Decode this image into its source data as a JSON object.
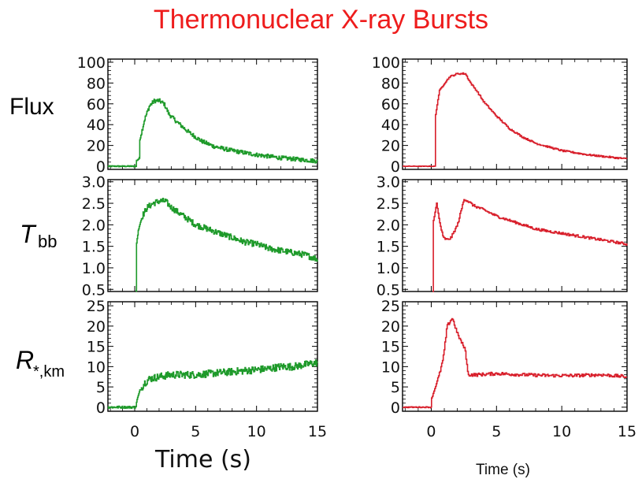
{
  "title": "Thermonuclear X-ray Bursts",
  "row_labels": {
    "flux": "Flux",
    "tbb_main": "T",
    "tbb_sub": "bb",
    "r_main": "R",
    "r_sub": "*,km"
  },
  "xlabel_left": "Time (s)",
  "xlabel_right": "Time (s)",
  "colors": {
    "title": "#ee1c1c",
    "left": "#1e9a2a",
    "right": "#d81e2a"
  },
  "chart_data": [
    {
      "type": "line",
      "name": "left-flux",
      "column": "left",
      "row": "flux",
      "xlim": [
        -2.2,
        15
      ],
      "ylim": [
        -3,
        103
      ],
      "yticks": [
        0,
        20,
        40,
        60,
        80,
        100
      ],
      "xticks": [
        0,
        5,
        10,
        15
      ],
      "x": [
        -2.2,
        0.1,
        0.1,
        0.4,
        0.4,
        0.8,
        1.2,
        1.6,
        2.0,
        2.4,
        2.8,
        3.5,
        4.5,
        5.5,
        6.5,
        8,
        10,
        12,
        14,
        15
      ],
      "y": [
        0,
        0,
        5,
        8,
        25,
        45,
        58,
        63,
        63,
        60,
        50,
        42,
        32,
        24,
        19,
        15,
        11,
        8,
        6,
        5
      ],
      "noise": 2
    },
    {
      "type": "line",
      "name": "left-tbb",
      "column": "left",
      "row": "tbb",
      "xlim": [
        -2.2,
        15
      ],
      "ylim": [
        0.45,
        3.05
      ],
      "yticks": [
        0.5,
        1.0,
        1.5,
        2.0,
        2.5,
        3.0
      ],
      "xticks": [
        0,
        5,
        10,
        15
      ],
      "x": [
        0.1,
        0.1,
        0.3,
        0.6,
        1.0,
        1.5,
        2.0,
        2.5,
        3.0,
        4.0,
        5.0,
        6.0,
        7.0,
        8.0,
        9.0,
        10.0,
        11.0,
        12.0,
        13.0,
        14.0,
        15.0
      ],
      "y": [
        0.45,
        1.5,
        1.9,
        2.2,
        2.4,
        2.5,
        2.55,
        2.55,
        2.4,
        2.2,
        2.0,
        1.9,
        1.8,
        1.7,
        1.6,
        1.55,
        1.45,
        1.4,
        1.35,
        1.3,
        1.2
      ],
      "noise": 0.07
    },
    {
      "type": "line",
      "name": "left-radius",
      "column": "left",
      "row": "radius",
      "xlim": [
        -2.2,
        15
      ],
      "ylim": [
        -1,
        26
      ],
      "yticks": [
        0,
        5,
        10,
        15,
        20,
        25
      ],
      "xticks": [
        0,
        5,
        10,
        15
      ],
      "x": [
        -2.2,
        0.1,
        0.1,
        0.4,
        0.8,
        1.2,
        2,
        3,
        5,
        7,
        9,
        11,
        12,
        13,
        14,
        15
      ],
      "y": [
        0,
        0,
        1,
        4,
        6,
        7,
        7.5,
        8,
        8,
        8.5,
        9,
        9.5,
        10,
        10,
        10.5,
        11
      ],
      "noise": 0.9
    },
    {
      "type": "line",
      "name": "right-flux",
      "column": "right",
      "row": "flux",
      "xlim": [
        -2.2,
        15
      ],
      "ylim": [
        -3,
        103
      ],
      "yticks": [
        0,
        20,
        40,
        60,
        80,
        100
      ],
      "xticks": [
        0,
        5,
        10,
        15
      ],
      "x": [
        -2.2,
        0.3,
        0.3,
        0.6,
        1.0,
        1.4,
        2.0,
        2.6,
        3.0,
        3.5,
        4.0,
        5.0,
        6.0,
        7.0,
        8.0,
        10.0,
        12.0,
        15.0
      ],
      "y": [
        0,
        0,
        48,
        72,
        80,
        86,
        89,
        89,
        80,
        72,
        62,
        48,
        36,
        28,
        22,
        15,
        11,
        7
      ],
      "noise": 0.8
    },
    {
      "type": "line",
      "name": "right-tbb",
      "column": "right",
      "row": "tbb",
      "xlim": [
        -2.2,
        15
      ],
      "ylim": [
        0.45,
        3.05
      ],
      "yticks": [
        0.5,
        1.0,
        1.5,
        2.0,
        2.5,
        3.0
      ],
      "xticks": [
        0,
        5,
        10,
        15
      ],
      "x": [
        0.1,
        0.1,
        0.4,
        0.6,
        0.9,
        1.2,
        1.5,
        2.0,
        2.5,
        2.8,
        3.2,
        4.0,
        5.0,
        6.0,
        7.0,
        8.0,
        9.0,
        10.0,
        11.0,
        12.0,
        13.0,
        14.0,
        15.0
      ],
      "y": [
        0.45,
        2.0,
        2.5,
        2.1,
        1.7,
        1.65,
        1.7,
        2.0,
        2.6,
        2.55,
        2.45,
        2.35,
        2.2,
        2.1,
        2.0,
        1.9,
        1.85,
        1.8,
        1.75,
        1.7,
        1.65,
        1.6,
        1.55
      ],
      "noise": 0.03
    },
    {
      "type": "line",
      "name": "right-radius",
      "column": "right",
      "row": "radius",
      "xlim": [
        -2.2,
        15
      ],
      "ylim": [
        -1,
        26
      ],
      "yticks": [
        0,
        5,
        10,
        15,
        20,
        25
      ],
      "xticks": [
        0,
        5,
        10,
        15
      ],
      "x": [
        -2.2,
        0.0,
        0.0,
        0.3,
        0.6,
        0.9,
        1.2,
        1.6,
        2.0,
        2.6,
        2.8,
        3.5,
        5,
        7,
        9,
        11,
        13,
        15
      ],
      "y": [
        0,
        0,
        2,
        5,
        8,
        12,
        20,
        22,
        18,
        14,
        8,
        8,
        8.3,
        8,
        7.8,
        7.8,
        8,
        7.5
      ],
      "noise": 0.4
    }
  ]
}
